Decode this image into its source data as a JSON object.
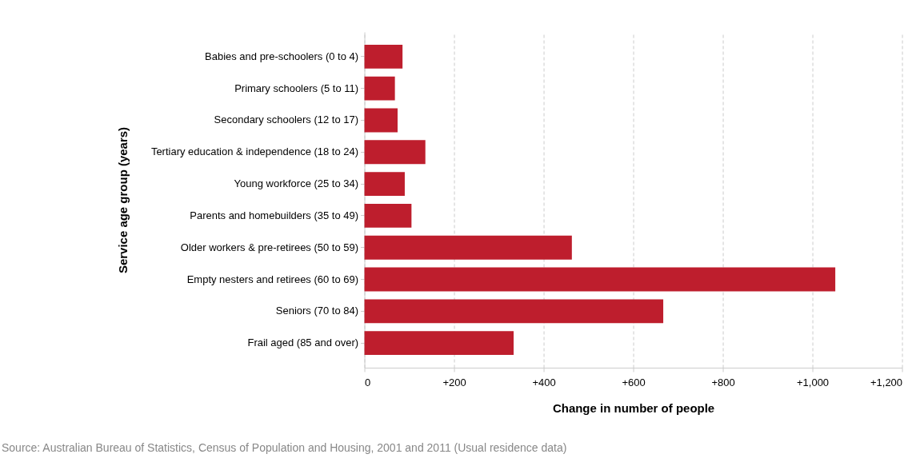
{
  "chart_data": {
    "type": "bar",
    "orientation": "horizontal",
    "xlabel": "Change in number of people",
    "ylabel": "Service age group (years)",
    "categories": [
      "Babies and pre-schoolers (0 to 4)",
      "Primary schoolers (5 to 11)",
      "Secondary schoolers (12 to 17)",
      "Tertiary education & independence (18 to 24)",
      "Young workforce (25 to 34)",
      "Parents and homebuilders (35 to 49)",
      "Older workers & pre-retirees (50 to 59)",
      "Empty nesters and retirees (60 to 69)",
      "Seniors (70 to 84)",
      "Frail aged (85 and over)"
    ],
    "values": [
      85,
      68,
      74,
      136,
      90,
      105,
      463,
      1051,
      667,
      333
    ],
    "color": "#be1e2d",
    "xlim": [
      0,
      1200
    ],
    "xticks": [
      0,
      {
        "value": 200,
        "label": "+200"
      },
      {
        "value": 400,
        "label": "+400"
      },
      {
        "value": 600,
        "label": "+600"
      },
      {
        "value": 800,
        "label": "+800"
      },
      {
        "value": 1000,
        "label": "+1,000"
      },
      {
        "value": 1200,
        "label": "+1,200"
      }
    ],
    "grid": "x",
    "annotations": [
      "Source: Australian Bureau of Statistics, Census of Population and Housing, 2001 and 2011 (Usual residence data)"
    ]
  }
}
